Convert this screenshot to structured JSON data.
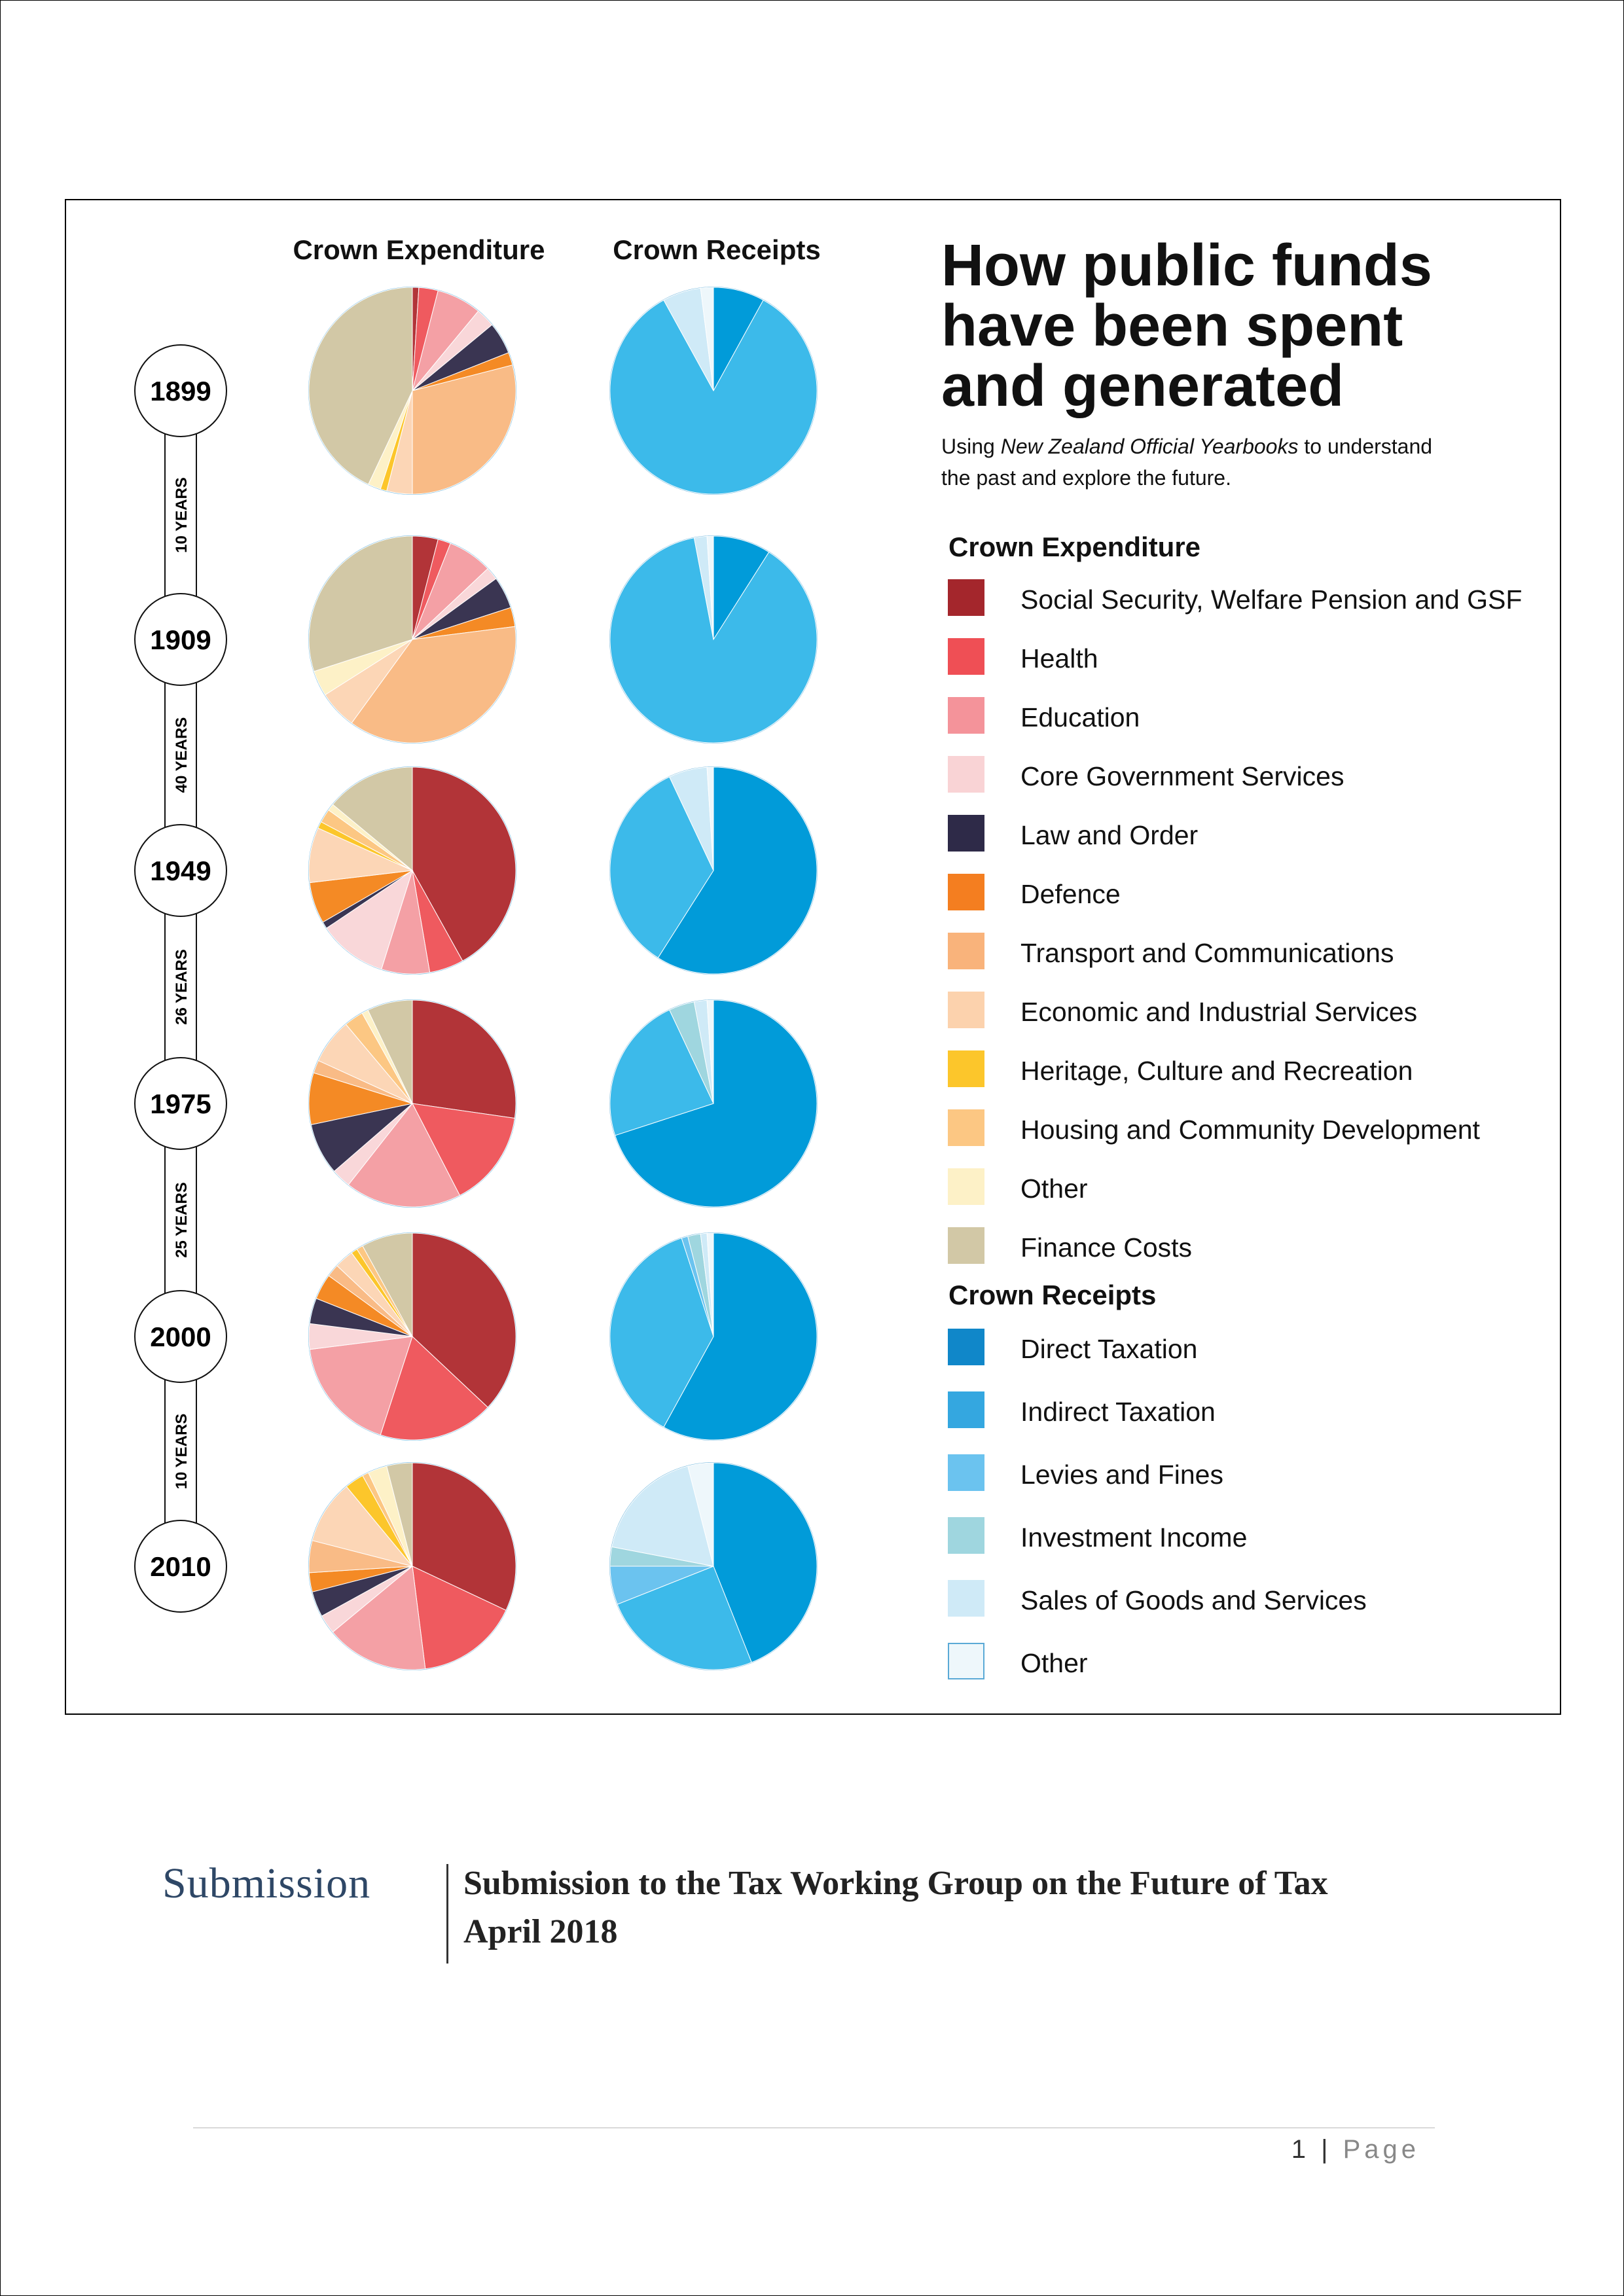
{
  "figure": {
    "title_lines": [
      "How public funds",
      "have been spent",
      "and generated"
    ],
    "subtitle": {
      "line1_pre": "Using ",
      "line1_em": "New Zealand Official Yearbooks",
      "line1_post": " to understand",
      "line2": "the past and explore the future."
    },
    "column_headers": {
      "expenditure": "Crown Expenditure",
      "receipts": "Crown Receipts"
    }
  },
  "timeline": {
    "years": [
      "1899",
      "1909",
      "1949",
      "1975",
      "2000",
      "2010"
    ],
    "gaps": [
      "10 YEARS",
      "40 YEARS",
      "26 YEARS",
      "25 YEARS",
      "10 YEARS"
    ]
  },
  "legend": {
    "expenditure_title": "Crown Expenditure",
    "expenditure_items": [
      {
        "label": "Social Security, Welfare Pension and GSF",
        "color": "#a4262c"
      },
      {
        "label": "Health",
        "color": "#ef4f55"
      },
      {
        "label": "Education",
        "color": "#f4939a"
      },
      {
        "label": "Core Government Services",
        "color": "#f9d3d5"
      },
      {
        "label": "Law and Order",
        "color": "#2e2a48"
      },
      {
        "label": "Defence",
        "color": "#f47e20"
      },
      {
        "label": "Transport and Communications",
        "color": "#f9b37b"
      },
      {
        "label": "Economic and Industrial Services",
        "color": "#fcd2ad"
      },
      {
        "label": "Heritage, Culture and Recreation",
        "color": "#fcc62b"
      },
      {
        "label": "Housing and Community Development",
        "color": "#fcc783"
      },
      {
        "label": "Other",
        "color": "#fdf1c7"
      },
      {
        "label": "Finance Costs",
        "color": "#d2c8a6"
      }
    ],
    "receipts_title": "Crown Receipts",
    "receipts_items": [
      {
        "label": "Direct Taxation",
        "color": "#1087c9",
        "outline": false
      },
      {
        "label": "Indirect Taxation",
        "color": "#34a7e0",
        "outline": false
      },
      {
        "label": "Levies and Fines",
        "color": "#6bc3ef",
        "outline": false
      },
      {
        "label": "Investment Income",
        "color": "#9fd6df",
        "outline": false
      },
      {
        "label": "Sales of Goods and Services",
        "color": "#cfeaf7",
        "outline": false
      },
      {
        "label": "Other",
        "color": "#eef7fb",
        "outline": true
      }
    ]
  },
  "chart_data": [
    {
      "type": "pie",
      "title": "Crown Expenditure",
      "rows": [
        "1899",
        "1909",
        "1949",
        "1975",
        "2000",
        "2010"
      ],
      "categories": [
        "Social Security, Welfare Pension and GSF",
        "Health",
        "Education",
        "Core Government Services",
        "Law and Order",
        "Defence",
        "Transport and Communications",
        "Economic and Industrial Services",
        "Heritage, Culture and Recreation",
        "Housing and Community Development",
        "Other",
        "Finance Costs"
      ],
      "colors": [
        "#b23438",
        "#ef5a5f",
        "#f4a0a5",
        "#f9d7d9",
        "#3a3552",
        "#f48a25",
        "#f9bb86",
        "#fcd6b6",
        "#fcc62b",
        "#fcc783",
        "#fdf1c7",
        "#d2c8a6"
      ],
      "series": [
        {
          "name": "1899",
          "values": [
            1,
            3,
            7,
            3,
            5,
            2,
            29,
            4,
            1,
            0,
            2,
            43
          ]
        },
        {
          "name": "1909",
          "values": [
            4,
            2,
            7,
            2,
            5,
            3,
            37,
            6,
            0,
            0,
            4,
            30
          ]
        },
        {
          "name": "1949",
          "values": [
            39,
            5,
            7,
            10,
            1,
            6,
            0,
            8,
            1,
            2,
            1,
            13
          ]
        },
        {
          "name": "1975",
          "values": [
            27,
            15,
            18,
            3,
            8,
            8,
            2,
            7,
            0,
            3,
            1,
            7
          ]
        },
        {
          "name": "2000",
          "values": [
            37,
            18,
            18,
            4,
            4,
            4,
            2,
            3,
            1,
            1,
            0,
            8
          ]
        },
        {
          "name": "2010",
          "values": [
            32,
            16,
            16,
            3,
            4,
            3,
            5,
            10,
            3,
            1,
            3,
            4
          ]
        }
      ]
    },
    {
      "type": "pie",
      "title": "Crown Receipts",
      "rows": [
        "1899",
        "1909",
        "1949",
        "1975",
        "2000",
        "2010"
      ],
      "categories": [
        "Direct Taxation",
        "Indirect Taxation",
        "Levies and Fines",
        "Investment Income",
        "Sales of Goods and Services",
        "Other"
      ],
      "colors": [
        "#019bd9",
        "#3cbaea",
        "#6bc3ef",
        "#9fd6df",
        "#cfeaf7",
        "#eef7fb"
      ],
      "series": [
        {
          "name": "1899",
          "values": [
            8,
            84,
            0,
            0,
            6,
            2
          ]
        },
        {
          "name": "1909",
          "values": [
            9,
            88,
            0,
            0,
            2,
            1
          ]
        },
        {
          "name": "1949",
          "values": [
            59,
            34,
            0,
            0,
            6,
            1
          ]
        },
        {
          "name": "1975",
          "values": [
            70,
            23,
            0,
            4,
            2,
            1
          ]
        },
        {
          "name": "2000",
          "values": [
            58,
            37,
            1,
            2,
            1,
            1
          ]
        },
        {
          "name": "2010",
          "values": [
            44,
            25,
            6,
            3,
            18,
            4
          ]
        }
      ]
    }
  ],
  "submission": {
    "word": "Submission",
    "line1": "Submission to the Tax Working Group on the Future of Tax",
    "line2": "April 2018"
  },
  "footer": {
    "page_number": "1",
    "separator": "|",
    "page_label": "Page"
  }
}
